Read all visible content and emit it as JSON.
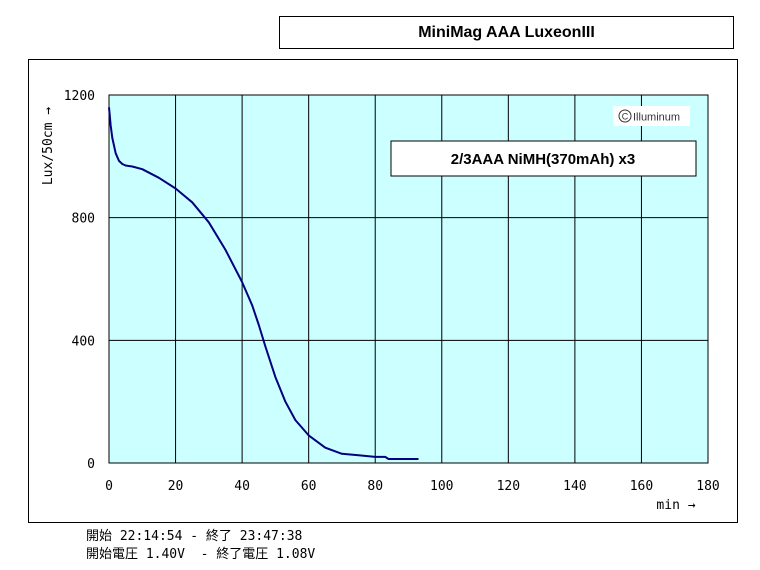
{
  "chart_data": {
    "type": "line",
    "title": "MiniMag AAA LuxeonIII",
    "annotation": "2/3AAA NiMH(370mAh) x3",
    "watermark": "Illuminum",
    "xlabel": "min →",
    "ylabel": "Lux/50cm →",
    "xlim": [
      0,
      180
    ],
    "ylim": [
      0,
      1200
    ],
    "xticks": [
      0,
      20,
      40,
      60,
      80,
      100,
      120,
      140,
      160,
      180
    ],
    "yticks": [
      0,
      400,
      800,
      1200
    ],
    "grid": true,
    "plot_background": "#ccffff",
    "series": [
      {
        "color": "#000080",
        "x": [
          0,
          0.5,
          1,
          2,
          3,
          4,
          5,
          7,
          10,
          15,
          20,
          25,
          30,
          35,
          40,
          43,
          45,
          47,
          50,
          53,
          56,
          60,
          65,
          70,
          75,
          80,
          83,
          84,
          85,
          90,
          93
        ],
        "y": [
          1160,
          1100,
          1060,
          1010,
          985,
          975,
          970,
          967,
          958,
          930,
          895,
          850,
          785,
          695,
          590,
          515,
          450,
          380,
          280,
          200,
          140,
          90,
          50,
          30,
          25,
          20,
          20,
          13,
          13,
          13,
          13
        ]
      }
    ]
  },
  "footer": {
    "line1": "開始 22:14:54 - 終了 23:47:38",
    "line2": "開始電圧 1.40V  - 終了電圧 1.08V"
  }
}
